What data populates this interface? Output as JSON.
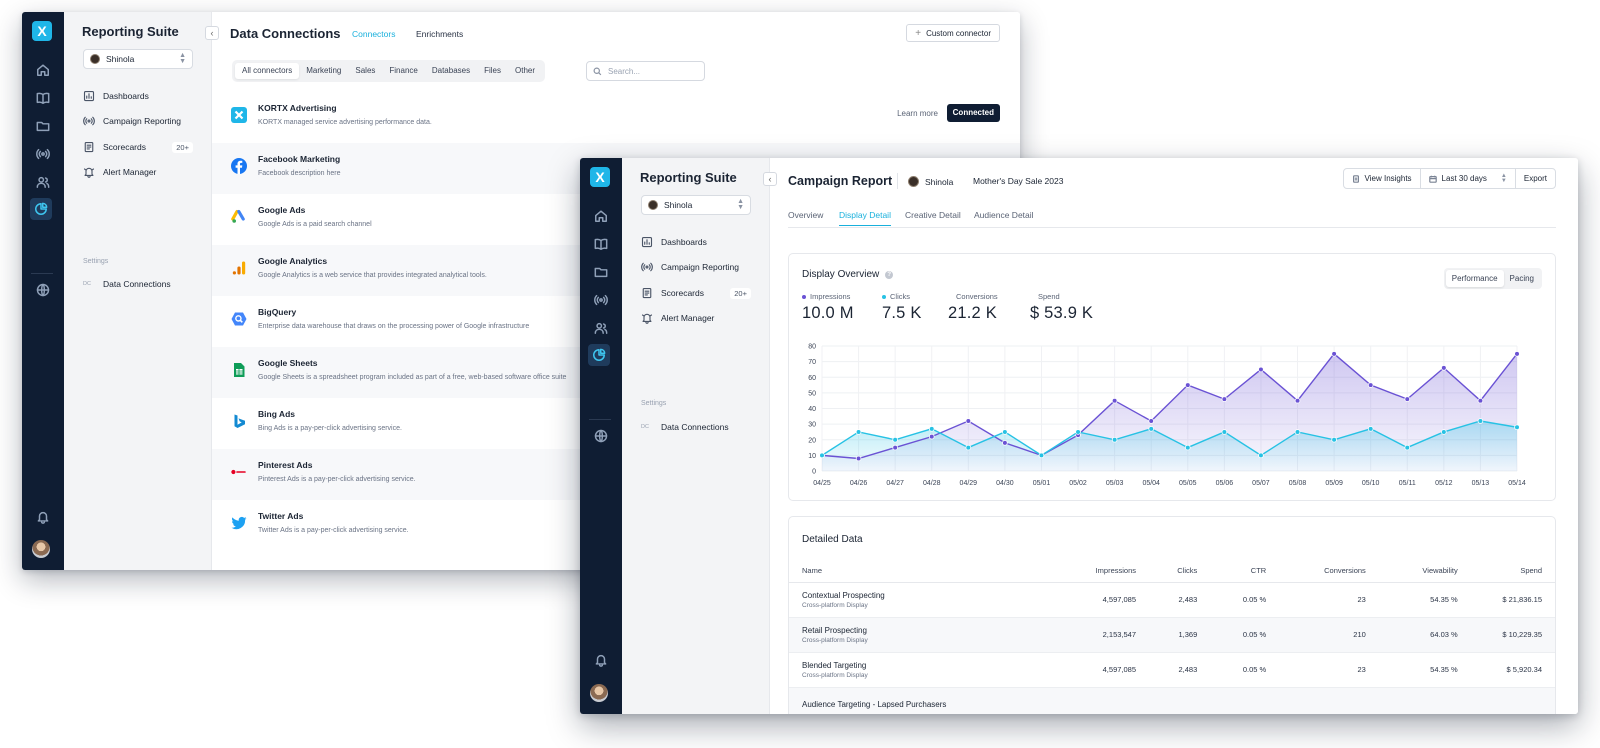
{
  "app": {
    "logo": "X",
    "title": "Reporting Suite"
  },
  "org": {
    "name": "Shinola"
  },
  "nav": [
    {
      "label": "Dashboards",
      "icon": "dashboard-icon"
    },
    {
      "label": "Campaign Reporting",
      "icon": "broadcast-icon"
    },
    {
      "label": "Scorecards",
      "icon": "scorecard-icon",
      "badge": "20+"
    },
    {
      "label": "Alert Manager",
      "icon": "bell-alert-icon"
    }
  ],
  "settings": {
    "label": "Settings",
    "dc_tag": "DC",
    "item": "Data Connections"
  },
  "connections": {
    "title": "Data Connections",
    "tabs": [
      "Connectors",
      "Enrichments"
    ],
    "custom_button": "Custom connector",
    "filters": [
      "All connectors",
      "Marketing",
      "Sales",
      "Finance",
      "Databases",
      "Files",
      "Other"
    ],
    "search_placeholder": "Search...",
    "learn_more": "Learn more",
    "connected": "Connected",
    "rows": [
      {
        "name": "KORTX Advertising",
        "desc": "KORTX managed service advertising performance data.",
        "icon": "kortx-logo-icon"
      },
      {
        "name": "Facebook Marketing",
        "desc": "Facebook description here",
        "icon": "facebook-logo-icon"
      },
      {
        "name": "Google Ads",
        "desc": "Google Ads is a paid search channel",
        "icon": "google-ads-logo-icon"
      },
      {
        "name": "Google Analytics",
        "desc": "Google Analytics is a web service that provides integrated analytical tools.",
        "icon": "google-analytics-logo-icon"
      },
      {
        "name": "BigQuery",
        "desc": "Enterprise data warehouse that draws on the processing power of Google infrastructure",
        "icon": "bigquery-logo-icon"
      },
      {
        "name": "Google Sheets",
        "desc": "Google Sheets is a spreadsheet program included as part of a free, web-based software office suite",
        "icon": "google-sheets-logo-icon"
      },
      {
        "name": "Bing Ads",
        "desc": "Bing Ads is a pay-per-click advertising service.",
        "icon": "bing-logo-icon"
      },
      {
        "name": "Pinterest Ads",
        "desc": "Pinterest Ads is a pay-per-click advertising service.",
        "icon": "pinterest-logo-icon"
      },
      {
        "name": "Twitter Ads",
        "desc": "Twitter Ads is a pay-per-click advertising service.",
        "icon": "twitter-logo-icon"
      }
    ]
  },
  "report": {
    "title": "Campaign Report",
    "client": "Shinola",
    "campaign": "Mother's Day Sale 2023",
    "toolbar": {
      "insights": "View Insights",
      "range": "Last 30 days",
      "export": "Export"
    },
    "tabs": [
      "Overview",
      "Display Detail",
      "Creative Detail",
      "Audience Detail"
    ],
    "active_tab": "Display Detail",
    "overview": {
      "title": "Display Overview",
      "help": "?",
      "toggle": [
        "Performance",
        "Pacing"
      ],
      "metrics": [
        {
          "label": "Impressions",
          "value": "10.0 M",
          "color": "#6a52d4"
        },
        {
          "label": "Clicks",
          "value": "7.5 K",
          "color": "#27c2e4"
        },
        {
          "label": "Conversions",
          "value": "21.2 K",
          "color": "#ffffff"
        },
        {
          "label": "Spend",
          "value": "$ 53.9 K",
          "color": "#ffffff"
        }
      ]
    },
    "detail": {
      "title": "Detailed Data",
      "columns": [
        "Name",
        "Impressions",
        "Clicks",
        "CTR",
        "Conversions",
        "Viewability",
        "Spend"
      ],
      "rows": [
        {
          "name": "Contextual Prospecting",
          "sub": "Cross-platform Display",
          "impressions": "4,597,085",
          "clicks": "2,483",
          "ctr": "0.05 %",
          "conversions": "23",
          "viewability": "54.35 %",
          "spend": "$ 21,836.15"
        },
        {
          "name": "Retail Prospecting",
          "sub": "Cross-platform Display",
          "impressions": "2,153,547",
          "clicks": "1,369",
          "ctr": "0.05 %",
          "conversions": "210",
          "viewability": "64.03 %",
          "spend": "$ 10,229.35"
        },
        {
          "name": "Blended Targeting",
          "sub": "Cross-platform Display",
          "impressions": "4,597,085",
          "clicks": "2,483",
          "ctr": "0.05 %",
          "conversions": "23",
          "viewability": "54.35 %",
          "spend": "$ 5,920.34"
        },
        {
          "name": "Audience Targeting - Lapsed Purchasers",
          "sub": "",
          "impressions": "",
          "clicks": "",
          "ctr": "",
          "conversions": "",
          "viewability": "",
          "spend": ""
        }
      ]
    }
  },
  "chart_data": {
    "type": "line",
    "categories": [
      "04/25",
      "04/26",
      "04/27",
      "04/28",
      "04/29",
      "04/30",
      "05/01",
      "05/02",
      "05/03",
      "05/04",
      "05/05",
      "05/06",
      "05/07",
      "05/08",
      "05/09",
      "05/10",
      "05/11",
      "05/12",
      "05/13",
      "05/14"
    ],
    "series": [
      {
        "color": "#6a52d4",
        "values": [
          10,
          8,
          15,
          22,
          32,
          18,
          10,
          23,
          45,
          32,
          55,
          46,
          65,
          45,
          75,
          55,
          46,
          66,
          45,
          75
        ]
      },
      {
        "color": "#27c2e4",
        "values": [
          10,
          25,
          20,
          27,
          15,
          25,
          10,
          25,
          20,
          27,
          15,
          25,
          10,
          25,
          20,
          27,
          15,
          25,
          32,
          28
        ]
      }
    ],
    "yticks": [
      0,
      10,
      20,
      30,
      40,
      50,
      60,
      70,
      80
    ],
    "ylim": [
      0,
      80
    ],
    "grid": true
  }
}
